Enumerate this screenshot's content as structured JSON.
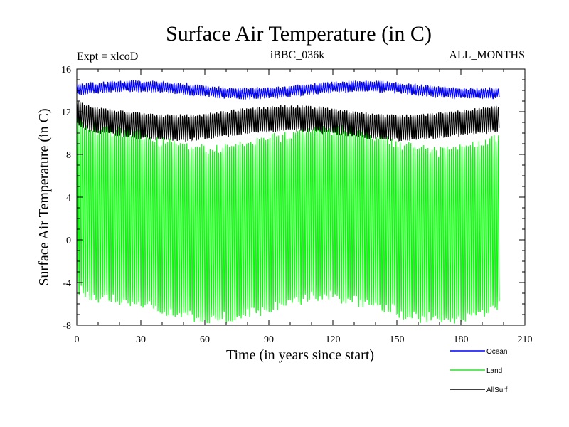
{
  "chart_data": {
    "type": "line",
    "title": "Surface Air Temperature (in C)",
    "subtitle_left": "Expt = xlcoD",
    "subtitle_center": "iBBC_036k",
    "subtitle_right": "ALL_MONTHS",
    "xlabel": "Time (in years since start)",
    "ylabel": "Surface Air Temperature (in C)",
    "xlim": [
      0,
      210
    ],
    "ylim": [
      -8,
      16
    ],
    "xticks": [
      0,
      30,
      60,
      90,
      120,
      150,
      180,
      210
    ],
    "yticks": [
      -8,
      -4,
      0,
      4,
      8,
      12,
      16
    ],
    "x_minor_step": 10,
    "y_minor_step": 1,
    "x_start": 0,
    "x_end": 198,
    "samples_per_year": 12,
    "legend_position": "bottom-right, outside plot",
    "series": [
      {
        "name": "Ocean",
        "color": "#0000ff",
        "annual_cycle_min": 13.6,
        "annual_cycle_max": 14.4,
        "mean_anomaly_range": [
          -0.3,
          0.4
        ]
      },
      {
        "name": "Land",
        "color": "#00ff00",
        "annual_cycle_min": -6.5,
        "annual_cycle_max": 9.5,
        "mean_anomaly_range": [
          -1.0,
          1.0
        ]
      },
      {
        "name": "AllSurf",
        "color": "#000000",
        "annual_cycle_min": 9.8,
        "annual_cycle_max": 12.0,
        "mean_anomaly_range": [
          -0.4,
          0.5
        ]
      }
    ]
  }
}
